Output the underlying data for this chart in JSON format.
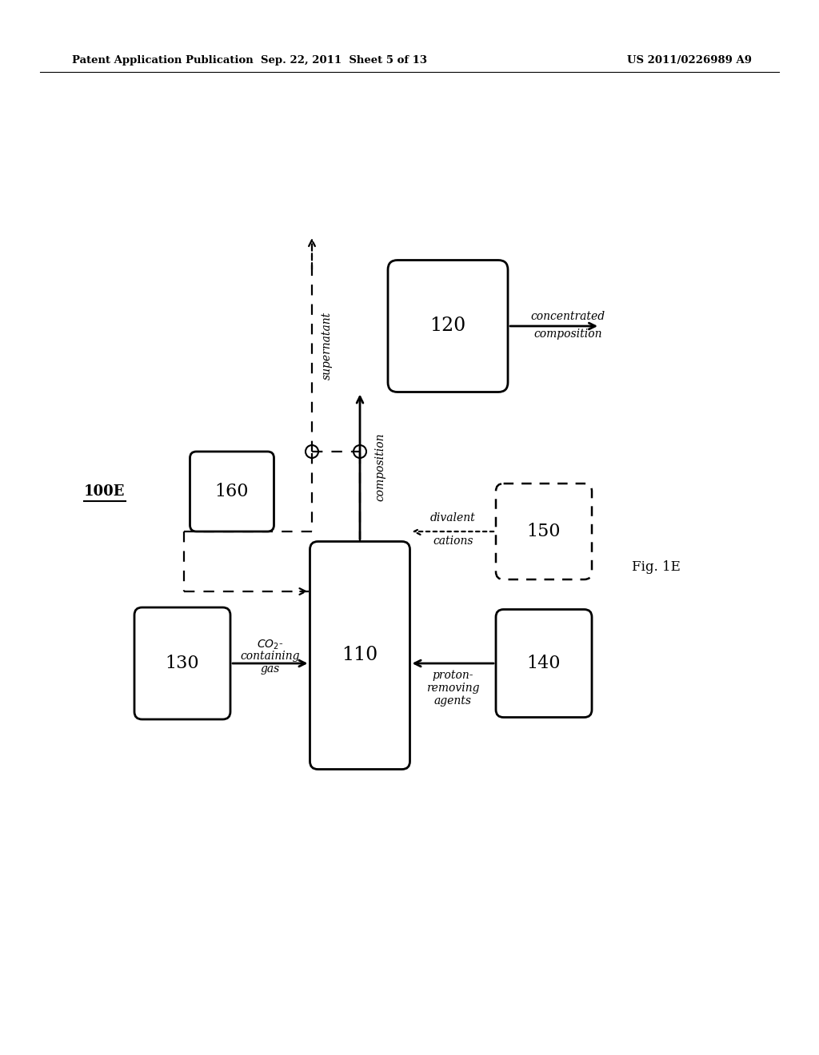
{
  "header_left": "Patent Application Publication",
  "header_center": "Sep. 22, 2011  Sheet 5 of 13",
  "header_right": "US 2011/0226989 A9",
  "label_100E": "100E",
  "fig_label": "Fig. 1E",
  "background": "#ffffff",
  "text_color": "#000000"
}
